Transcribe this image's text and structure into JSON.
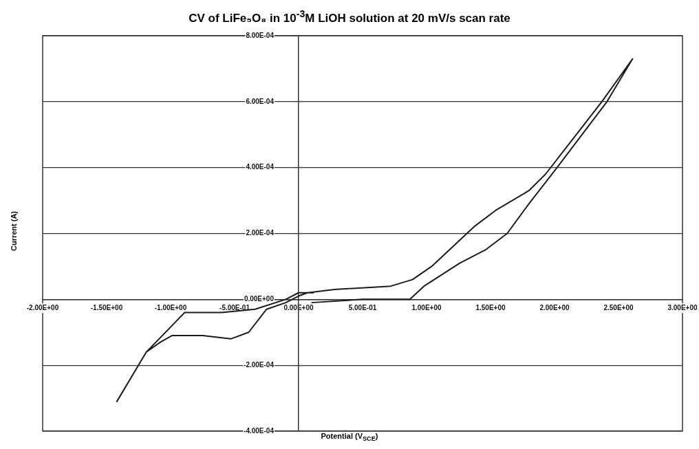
{
  "chart_data": {
    "type": "line",
    "title": "CV of LiFe₅O₈ in 10$^{-3}$M LiOH solution at 20 mV/s scan rate",
    "xlabel": "Potential (V$_{SCE}$)",
    "ylabel": "Current (A)",
    "series": [
      {
        "color": "#1a1a1a",
        "x": [
          0.1,
          0.5,
          0.87,
          0.98,
          1.26,
          1.46,
          1.63,
          1.8,
          2.02,
          2.41,
          2.61,
          2.37,
          2.13,
          1.93,
          1.8,
          1.54,
          1.37,
          1.04,
          0.89,
          0.72,
          0.28,
          0.07,
          0,
          -0.1,
          -0.25,
          -0.39,
          -0.53,
          -0.75,
          -0.99,
          -1.08,
          -1.19,
          -1.42,
          -1.19,
          -0.89,
          -0.6,
          -0.34,
          -0.1,
          0,
          0.12
        ],
        "values": [
          -1e-05,
          0,
          0,
          4e-05,
          0.00011,
          0.00015,
          0.0002,
          0.00029,
          0.0004,
          0.0006,
          0.00073,
          0.0006,
          0.00048,
          0.00038,
          0.00033,
          0.00027,
          0.00022,
          0.0001,
          6e-05,
          4e-05,
          3e-05,
          2e-05,
          1e-05,
          -1e-05,
          -3e-05,
          -0.0001,
          -0.00012,
          -0.00011,
          -0.00011,
          -0.00013,
          -0.00016,
          -0.00031,
          -0.00016,
          -4e-05,
          -4e-05,
          -3e-05,
          0,
          2e-05,
          2e-05
        ]
      }
    ],
    "xlim": [
      -2,
      3
    ],
    "ylim": [
      -0.0004,
      0.0008
    ],
    "xticks": [
      {
        "value": -2,
        "label": "-2.00E+00"
      },
      {
        "value": -1.5,
        "label": "-1.50E+00"
      },
      {
        "value": -1,
        "label": "-1.00E+00"
      },
      {
        "value": -0.5,
        "label": "-5.00E-01"
      },
      {
        "value": 0,
        "label": "0.00E+00"
      },
      {
        "value": 0.5,
        "label": "5.00E-01"
      },
      {
        "value": 1,
        "label": "1.00E+00"
      },
      {
        "value": 1.5,
        "label": "1.50E+00"
      },
      {
        "value": 2,
        "label": "2.00E+00"
      },
      {
        "value": 2.5,
        "label": "2.50E+00"
      },
      {
        "value": 3,
        "label": "3.00E+00"
      }
    ],
    "yticks": [
      {
        "value": -0.0004,
        "label": "-4.00E-04"
      },
      {
        "value": -0.0002,
        "label": "-2.00E-04"
      },
      {
        "value": 0,
        "label": "0.00E+00"
      },
      {
        "value": 0.0002,
        "label": "2.00E-04"
      },
      {
        "value": 0.0004,
        "label": "4.00E-04"
      },
      {
        "value": 0.0006,
        "label": "6.00E-04"
      },
      {
        "value": 0.0008,
        "label": "8.00E-04"
      }
    ],
    "grid": "y",
    "marker": "none",
    "line_style": "solid",
    "legend": false
  }
}
